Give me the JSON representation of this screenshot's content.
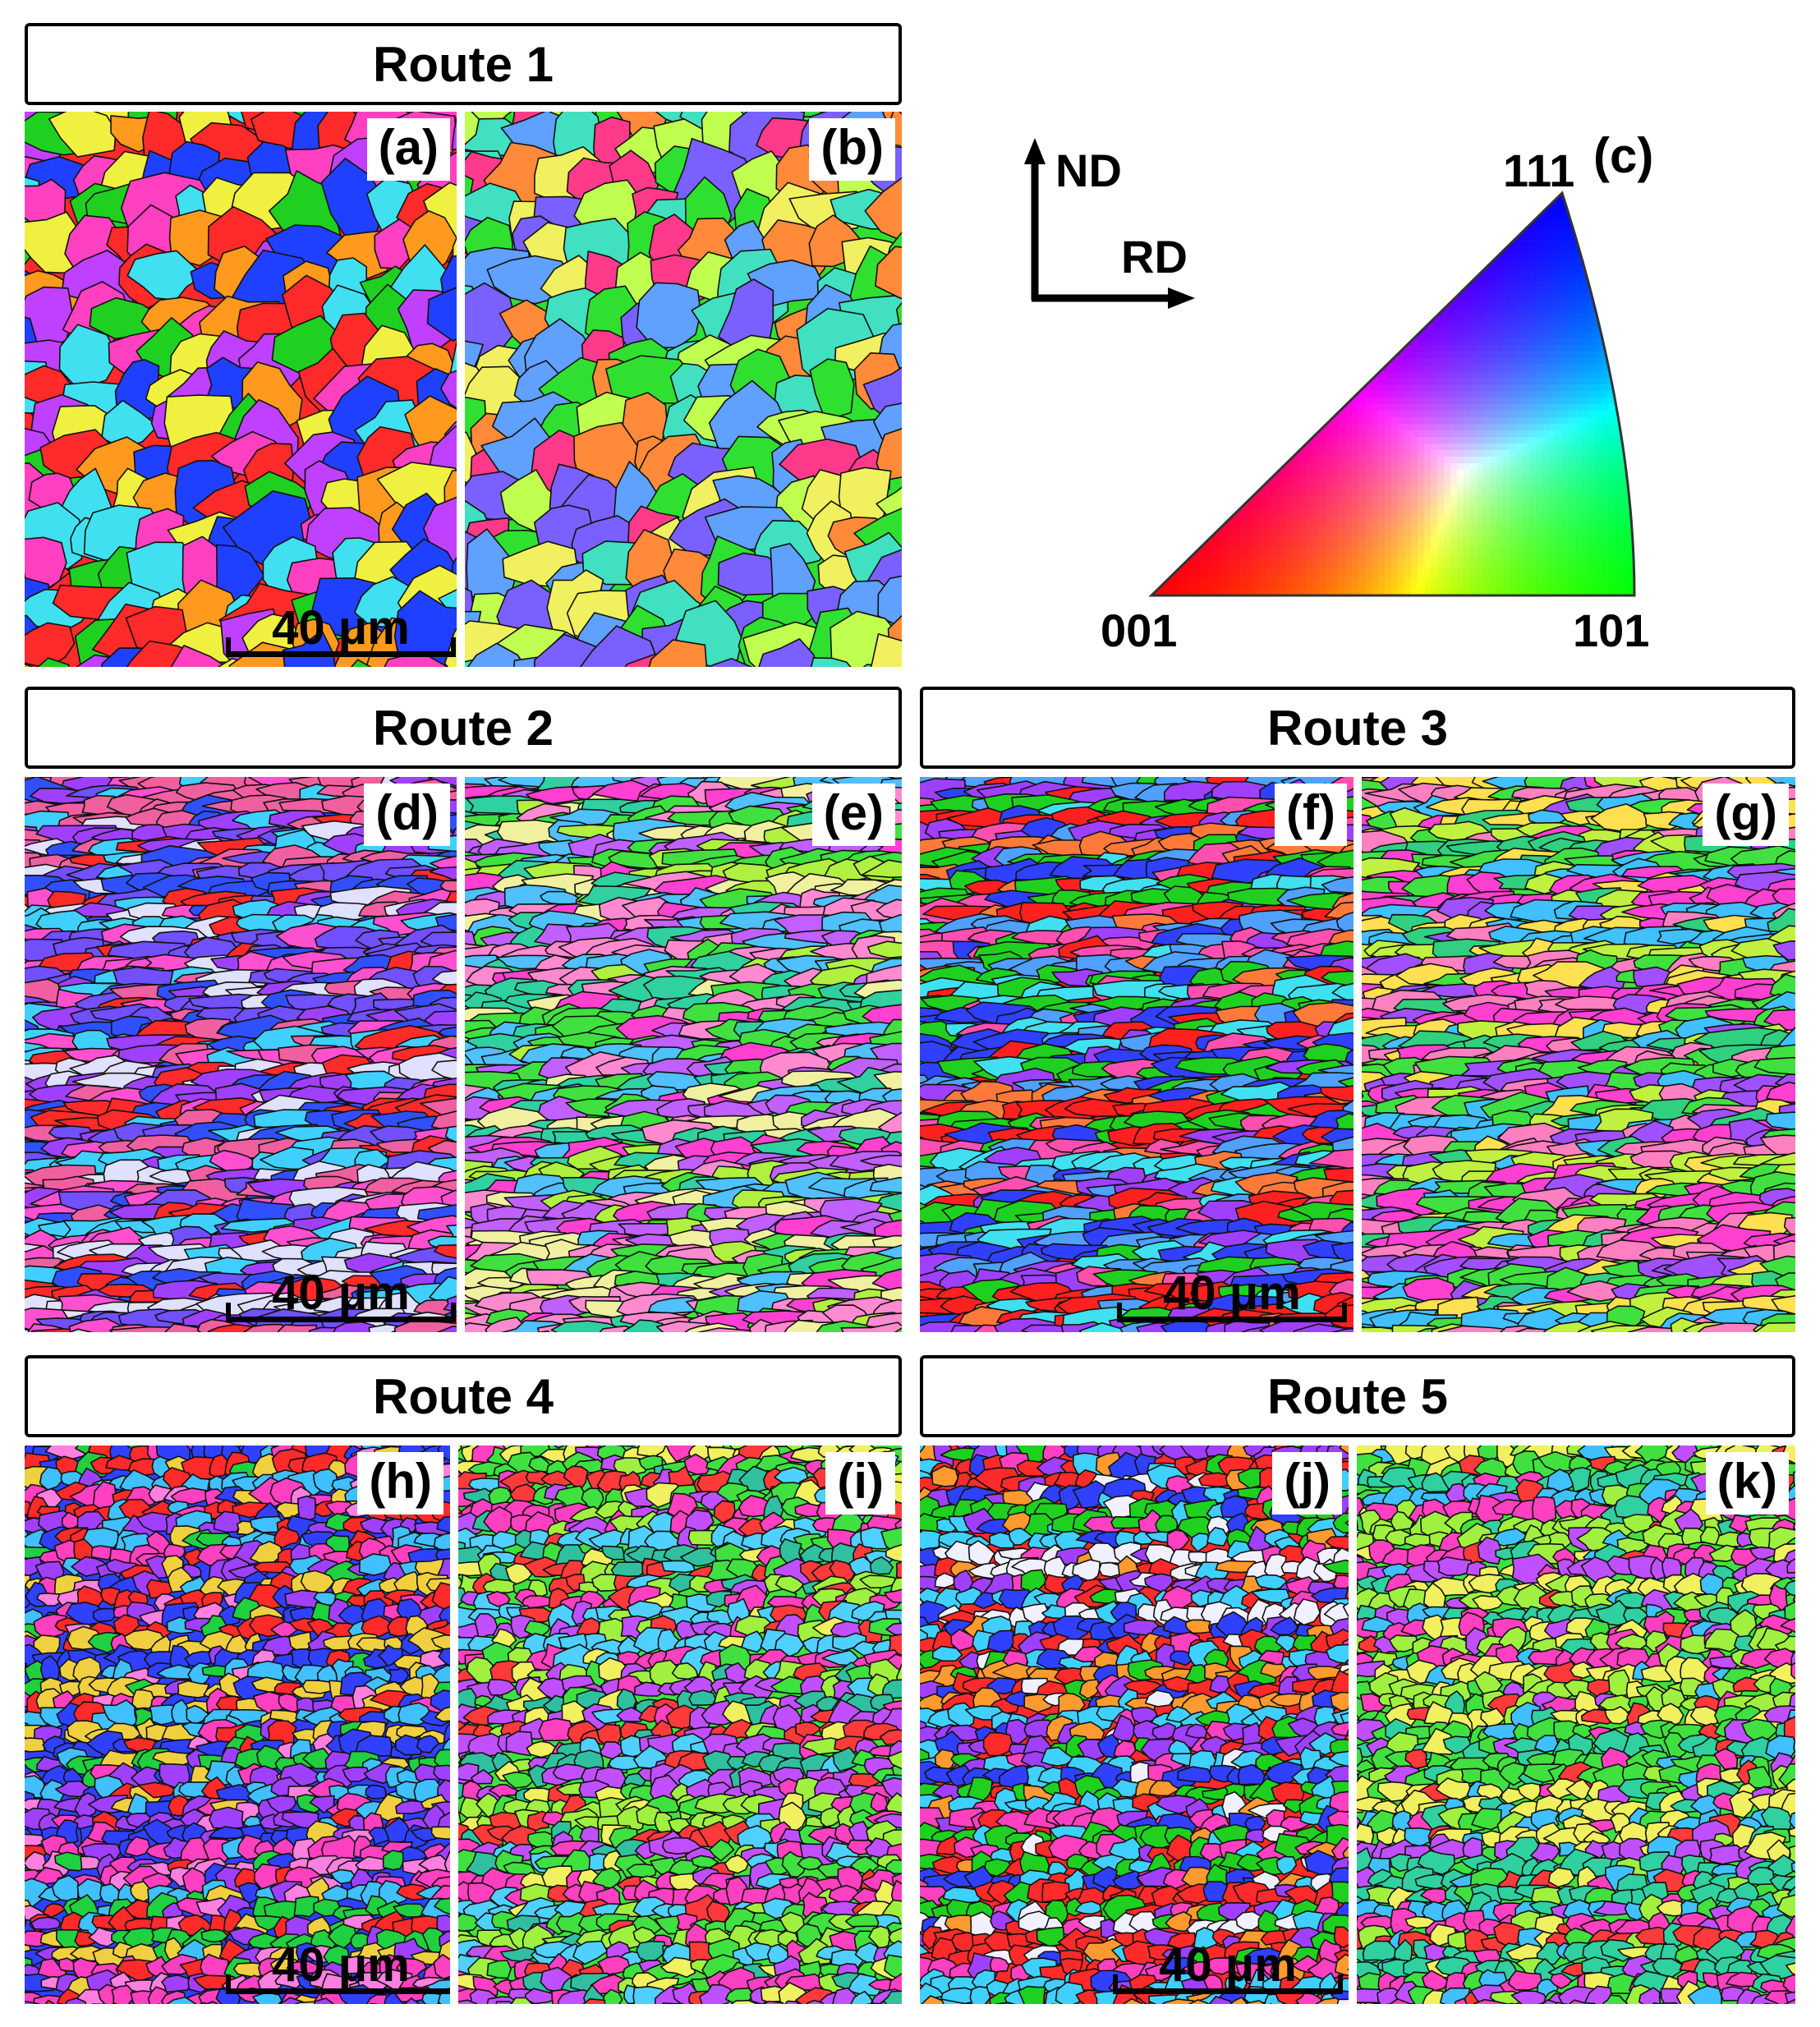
{
  "routes": {
    "route1": "Route 1",
    "route2": "Route 2",
    "route3": "Route 3",
    "route4": "Route 4",
    "route5": "Route 5"
  },
  "panels": {
    "a": "(a)",
    "b": "(b)",
    "c": "(c)",
    "d": "(d)",
    "e": "(e)",
    "f": "(f)",
    "g": "(g)",
    "h": "(h)",
    "i": "(i)",
    "j": "(j)",
    "k": "(k)"
  },
  "scale_label": "40 μm",
  "legend": {
    "nd": "ND",
    "rd": "RD",
    "pole_111": "111",
    "pole_001": "001",
    "pole_101": "101"
  },
  "colors": {
    "pole_001": "#ff0000",
    "pole_101": "#00dd00",
    "pole_111": "#0000ff"
  },
  "maps": {
    "a": {
      "palette": [
        "#ff2a2a",
        "#2040ff",
        "#ff9a1e",
        "#ff40c0",
        "#20d020",
        "#40e0f0",
        "#c040ff",
        "#f0f040"
      ]
    },
    "b": {
      "palette": [
        "#30e030",
        "#7a60ff",
        "#ff3a8a",
        "#40e0c0",
        "#f0f060",
        "#ff8a3a",
        "#60a0ff",
        "#c0ff50"
      ]
    },
    "d": {
      "palette": [
        "#3050ff",
        "#a040ff",
        "#ff2a2a",
        "#ff50d0",
        "#40d0ff",
        "#7050ff",
        "#f060a0",
        "#e0e0ff"
      ]
    },
    "e": {
      "palette": [
        "#40e040",
        "#b0f040",
        "#ff40d0",
        "#c060ff",
        "#50c0ff",
        "#f0f0a0",
        "#30d0a0",
        "#ff8ad0"
      ]
    },
    "f": {
      "palette": [
        "#ff2020",
        "#3040ff",
        "#a040ff",
        "#50a0ff",
        "#ff50b0",
        "#20d020",
        "#40e0f0",
        "#ff7a3a"
      ]
    },
    "g": {
      "palette": [
        "#40e040",
        "#ff40d0",
        "#c0f040",
        "#a050ff",
        "#ffe050",
        "#40c0ff",
        "#ff80c0",
        "#30d080"
      ]
    },
    "h": {
      "palette": [
        "#3040ff",
        "#ff40c0",
        "#a040ff",
        "#ff2a2a",
        "#40c0ff",
        "#f0d040",
        "#ff80e0",
        "#20d040"
      ]
    },
    "i": {
      "palette": [
        "#40e040",
        "#ff40c0",
        "#a0f040",
        "#c050ff",
        "#ff3a3a",
        "#50d0ff",
        "#f0f060",
        "#30c0a0"
      ]
    },
    "j": {
      "palette": [
        "#ff2a2a",
        "#3040ff",
        "#ff40c0",
        "#a040ff",
        "#40d0ff",
        "#20d020",
        "#ff9a30",
        "#f0f0ff"
      ]
    },
    "k": {
      "palette": [
        "#40e040",
        "#ff40c0",
        "#a0f040",
        "#c050ff",
        "#40c0ff",
        "#ff3a3a",
        "#f0f060",
        "#30d0a0"
      ]
    }
  }
}
